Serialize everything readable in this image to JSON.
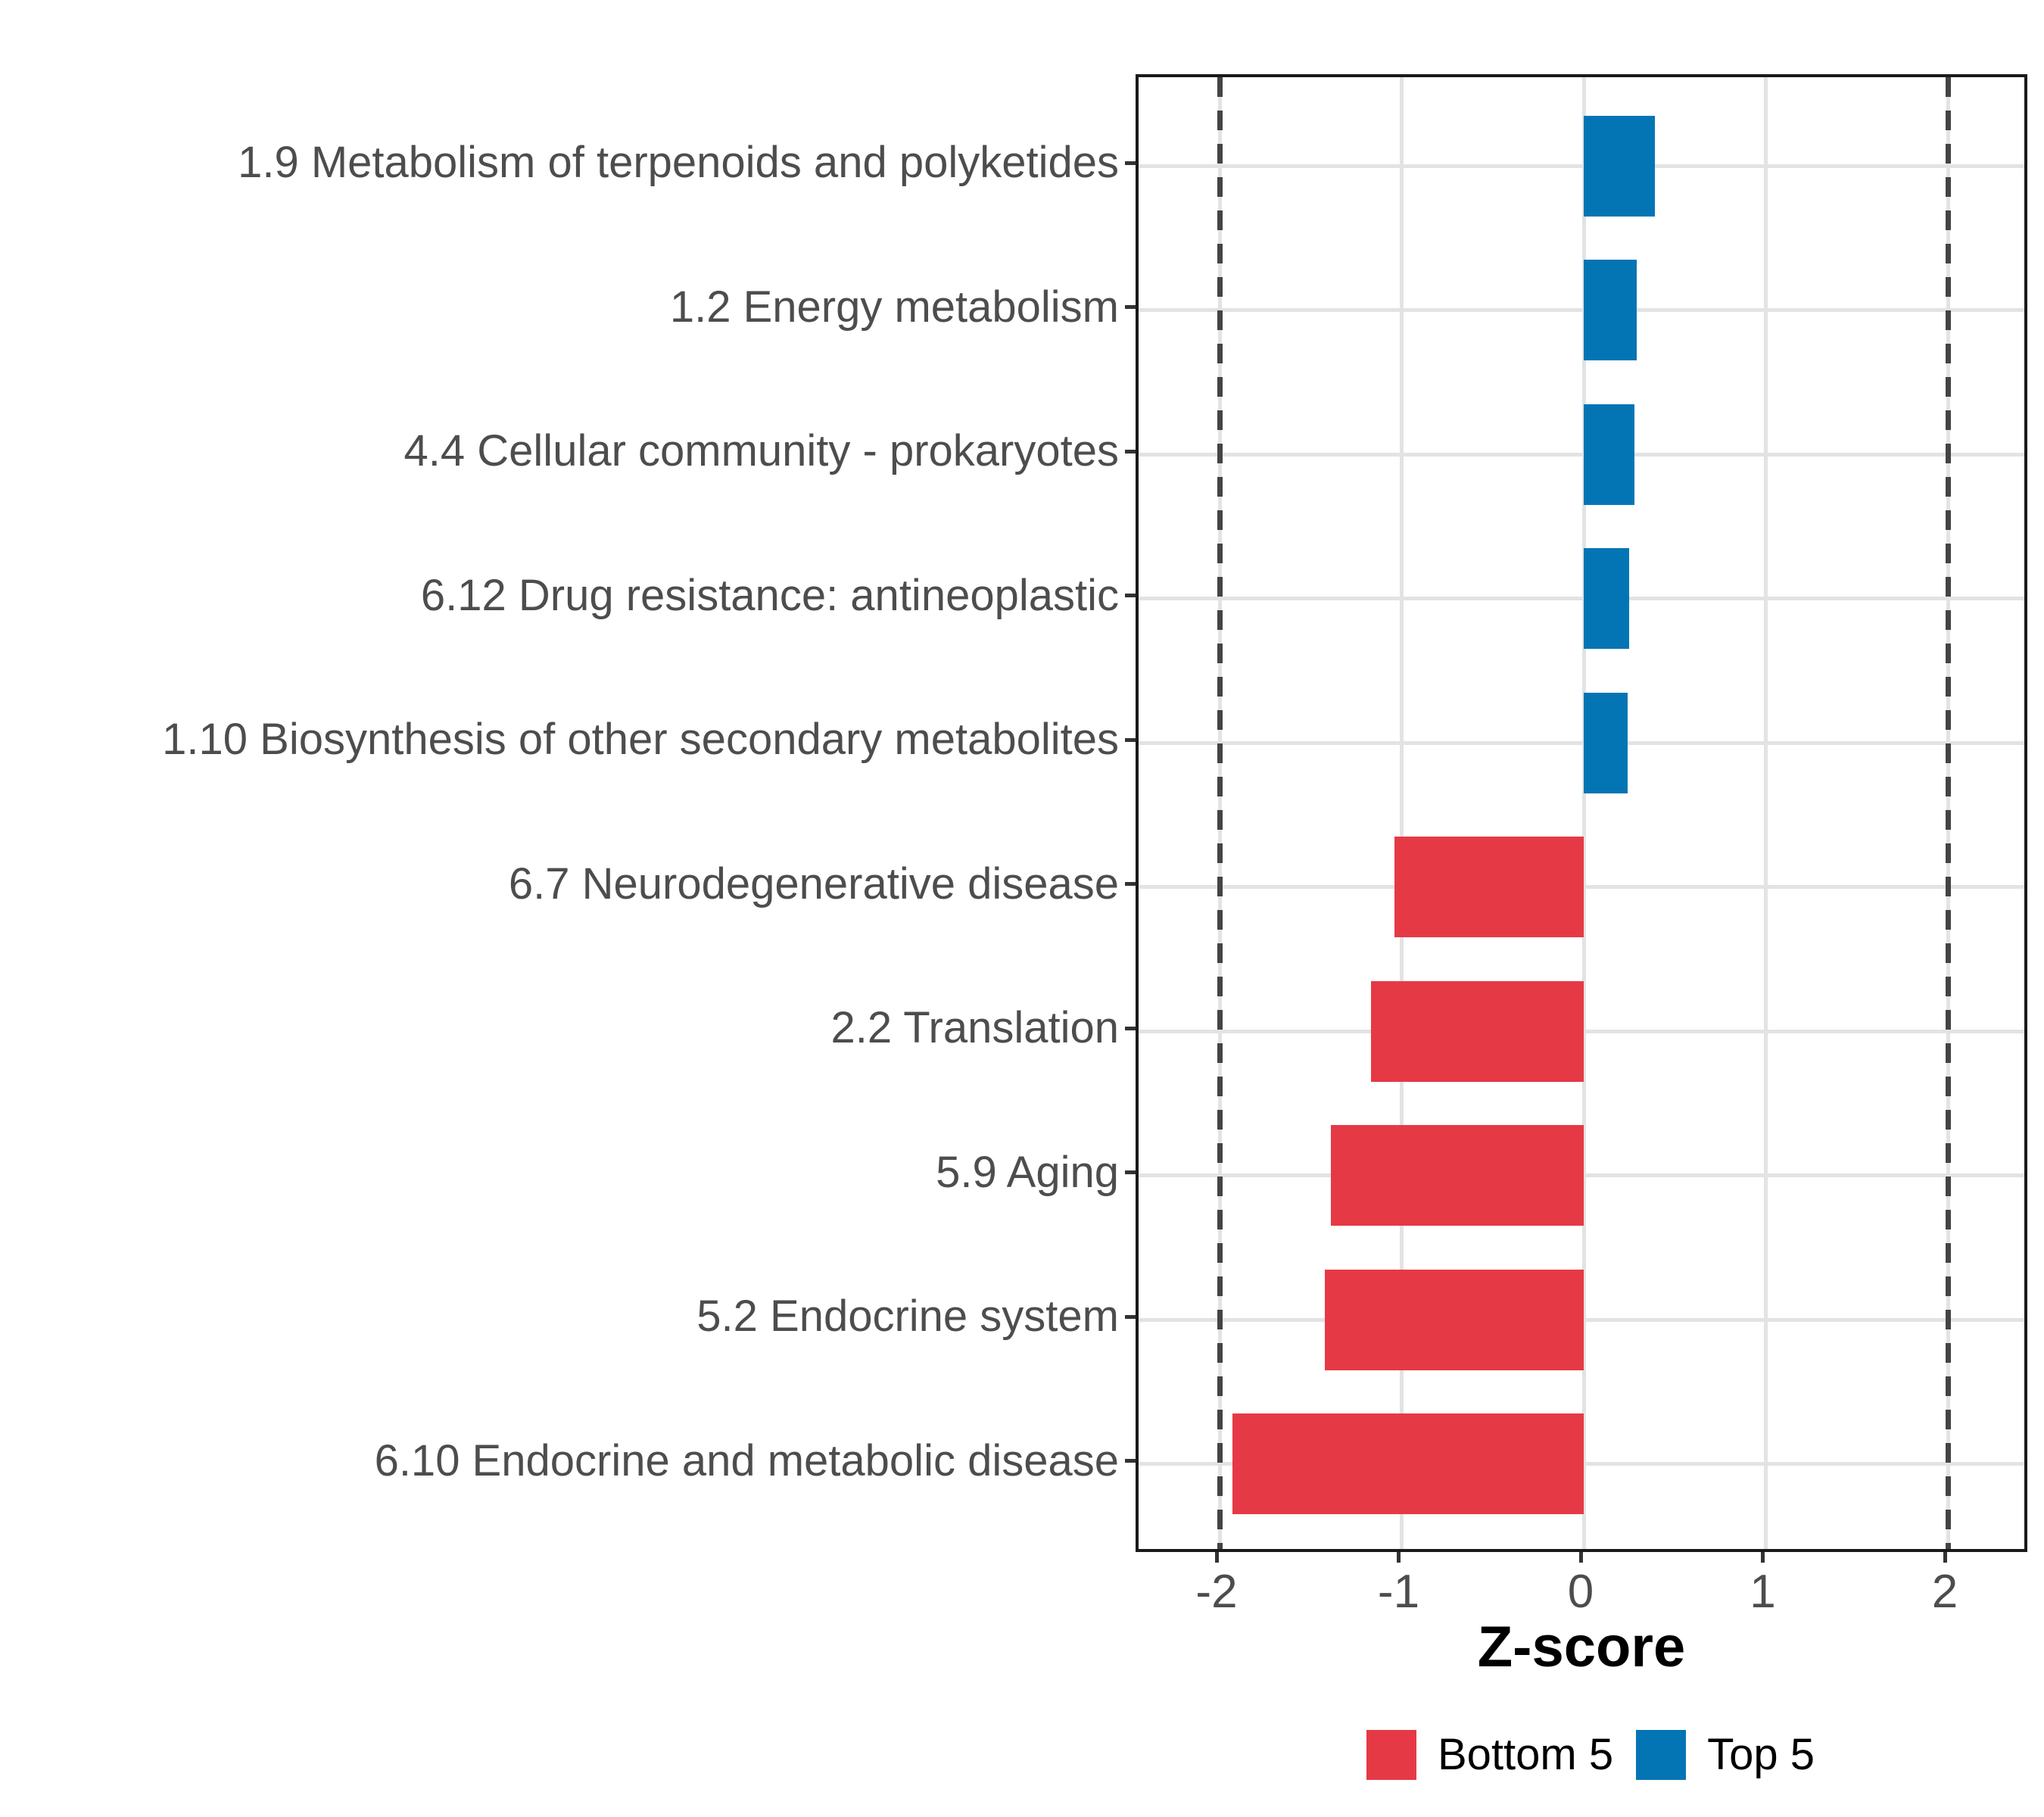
{
  "chart_data": {
    "type": "bar",
    "orientation": "horizontal",
    "title": "",
    "xlabel": "Z-score",
    "ylabel": "",
    "xlim": [
      -2.45,
      2.46
    ],
    "x_ticks": [
      -2,
      -1,
      0,
      1,
      2
    ],
    "grid": "major-only",
    "ref_lines": {
      "style": "dashed",
      "x": [
        -2,
        2
      ],
      "color": "#444444"
    },
    "rows": [
      {
        "category": "1.9 Metabolism of terpenoids and polyketides",
        "value": 0.39,
        "group": "Top 5"
      },
      {
        "category": "1.2 Energy metabolism",
        "value": 0.29,
        "group": "Top 5"
      },
      {
        "category": "4.4 Cellular community - prokaryotes",
        "value": 0.28,
        "group": "Top 5"
      },
      {
        "category": "6.12 Drug resistance: antineoplastic",
        "value": 0.25,
        "group": "Top 5"
      },
      {
        "category": "1.10 Biosynthesis of other secondary metabolites",
        "value": 0.24,
        "group": "Top 5"
      },
      {
        "category": "6.7 Neurodegenerative disease",
        "value": -1.04,
        "group": "Bottom 5"
      },
      {
        "category": "2.2 Translation",
        "value": -1.17,
        "group": "Bottom 5"
      },
      {
        "category": "5.9 Aging",
        "value": -1.39,
        "group": "Bottom 5"
      },
      {
        "category": "5.2 Endocrine system",
        "value": -1.42,
        "group": "Bottom 5"
      },
      {
        "category": "6.10 Endocrine and metabolic disease",
        "value": -1.93,
        "group": "Bottom 5"
      }
    ],
    "colors": {
      "Top 5": "#0475B4",
      "Bottom 5": "#E63946"
    },
    "legend": {
      "position": "bottom",
      "entries": [
        {
          "label": "Bottom 5",
          "color": "#E63946"
        },
        {
          "label": "Top 5",
          "color": "#0475B4"
        }
      ]
    },
    "style_colors": {
      "grid": "#E3E3E3",
      "panel_border": "#1A1A1A",
      "axis_text": "#4D4D4D",
      "tick_mark": "#333333"
    }
  }
}
